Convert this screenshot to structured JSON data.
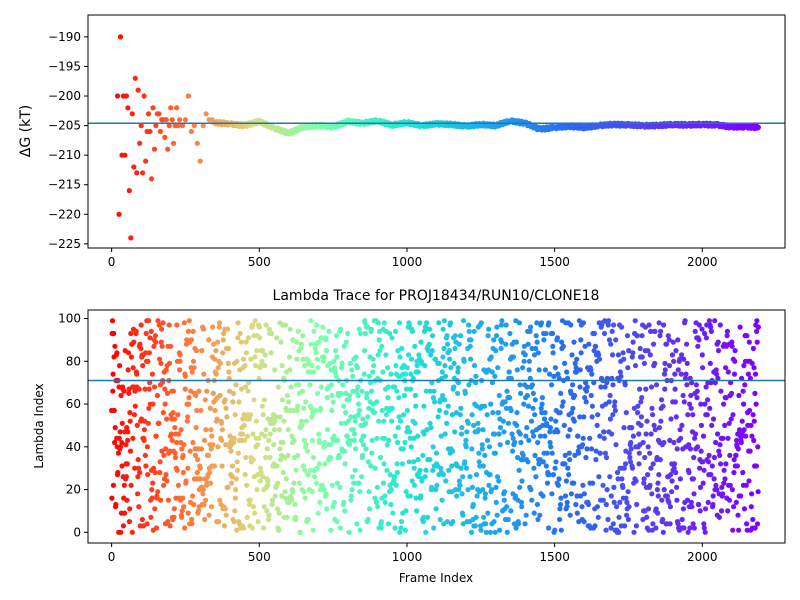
{
  "chart_data": [
    {
      "type": "scatter",
      "title": "",
      "xlabel": "",
      "ylabel": "ΔG (kT)",
      "xlim": [
        -80,
        2280
      ],
      "ylim": [
        -225.7,
        -186.3
      ],
      "xticks": [
        0,
        500,
        1000,
        1500,
        2000
      ],
      "yticks": [
        -225,
        -220,
        -215,
        -210,
        -205,
        -200,
        -195,
        -190
      ],
      "hline": -204.6,
      "hline_color": "#1f77b4",
      "colormap": "rainbow",
      "color_direction": "red-at-start-violet-at-end",
      "grid": false,
      "legend": "none",
      "series": [
        {
          "x": [
            20,
            25,
            30,
            35,
            40,
            45,
            50,
            55,
            60,
            65,
            70,
            75,
            80,
            85,
            90,
            95,
            100,
            105,
            110,
            115,
            120,
            125,
            130,
            135,
            140,
            145,
            150,
            155,
            160,
            165,
            170,
            175,
            180,
            185,
            190,
            195,
            200,
            205,
            210,
            215,
            220,
            225,
            230,
            240,
            250,
            260,
            270,
            280,
            290,
            300,
            310,
            320,
            330,
            340
          ],
          "y": [
            -200,
            -220,
            -190,
            -210,
            -200,
            -210,
            -200,
            -202,
            -216,
            -224,
            -203,
            -212,
            -197,
            -213,
            -199,
            -208,
            -205,
            -213,
            -200,
            -211,
            -206,
            -203,
            -206,
            -214,
            -202,
            -209,
            -205,
            -203,
            -203,
            -206,
            -204,
            -204,
            -207,
            -204,
            -209,
            -205,
            -202,
            -204,
            -208,
            -205,
            -202,
            -205,
            -204,
            -205,
            -204,
            -200,
            -206,
            -205,
            -208,
            -211,
            -205,
            -203,
            -204,
            -204
          ]
        },
        {
          "x": [
            350,
            400,
            450,
            500,
            550,
            600,
            650,
            700,
            750,
            800,
            850,
            900,
            950,
            1000,
            1050,
            1100,
            1150,
            1200,
            1250,
            1300,
            1350,
            1400,
            1450,
            1500,
            1550,
            1600,
            1650,
            1700,
            1750,
            1800,
            1850,
            1900,
            1950,
            2000,
            2050,
            2100,
            2150,
            2190
          ],
          "y": [
            -204.5,
            -204.7,
            -205.0,
            -204.3,
            -205.4,
            -206.3,
            -205.2,
            -205.0,
            -205.2,
            -204.3,
            -204.6,
            -204.2,
            -204.9,
            -204.5,
            -205.0,
            -204.7,
            -204.8,
            -205.1,
            -204.8,
            -205.0,
            -204.2,
            -204.6,
            -205.6,
            -205.3,
            -205.1,
            -205.3,
            -205.0,
            -204.8,
            -204.9,
            -205.0,
            -205.0,
            -204.8,
            -204.9,
            -204.8,
            -204.9,
            -205.2,
            -205.2,
            -205.3
          ]
        }
      ]
    },
    {
      "type": "scatter",
      "title": "Lambda Trace for PROJ18434/RUN10/CLONE18",
      "xlabel": "Frame Index",
      "ylabel": "Lambda Index",
      "xlim": [
        -80,
        2280
      ],
      "ylim": [
        -5,
        104
      ],
      "xticks": [
        0,
        500,
        1000,
        1500,
        2000
      ],
      "yticks": [
        0,
        20,
        40,
        60,
        80,
        100
      ],
      "hline": 71,
      "hline_color": "#1f77b4",
      "colormap": "rainbow",
      "color_direction": "red-at-start-violet-at-end",
      "grid": false,
      "legend": "none",
      "n_points": 2190,
      "x_range": [
        0,
        2190
      ],
      "y_range": [
        0,
        99
      ],
      "distribution": "uniform-random"
    }
  ]
}
